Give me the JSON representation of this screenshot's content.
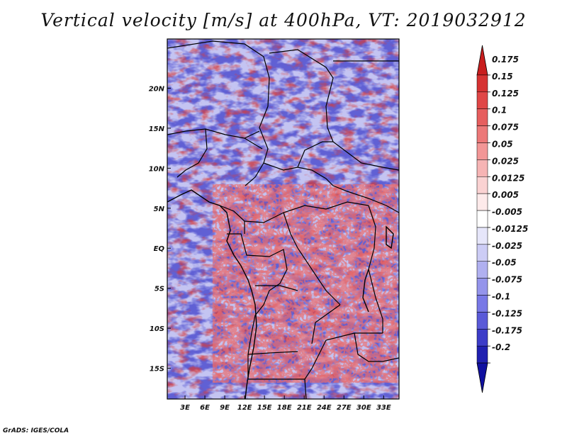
{
  "title": "Vertical velocity [m/s] at 400hPa, VT: 2019032912",
  "footer": "GrADS: IGES/COLA",
  "map": {
    "lon_range": [
      0,
      35
    ],
    "lat_range": [
      -20,
      25
    ],
    "lon_ticks": [
      "3E",
      "6E",
      "9E",
      "12E",
      "15E",
      "18E",
      "21E",
      "24E",
      "27E",
      "30E",
      "33E"
    ],
    "lat_ticks": [
      "20N",
      "15N",
      "10N",
      "5N",
      "EQ",
      "5S",
      "10S",
      "15S"
    ]
  },
  "colorbar": {
    "labels": [
      "0.175",
      "0.15",
      "0.125",
      "0.1",
      "0.075",
      "0.05",
      "0.025",
      "0.0125",
      "0.005",
      "-0.005",
      "-0.0125",
      "-0.025",
      "-0.05",
      "-0.075",
      "-0.1",
      "-0.125",
      "-0.175",
      "-0.2"
    ],
    "colors": [
      "#c81e1e",
      "#d63232",
      "#e04646",
      "#e65e5e",
      "#ec7878",
      "#f29696",
      "#f6b4b4",
      "#fad2d2",
      "#fdeaea",
      "#ffffff",
      "#e6e6fa",
      "#ccccf5",
      "#b0b0f0",
      "#9494eb",
      "#7878e6",
      "#5a5ad8",
      "#3c3cc8",
      "#2020b0",
      "#1010a0"
    ]
  }
}
